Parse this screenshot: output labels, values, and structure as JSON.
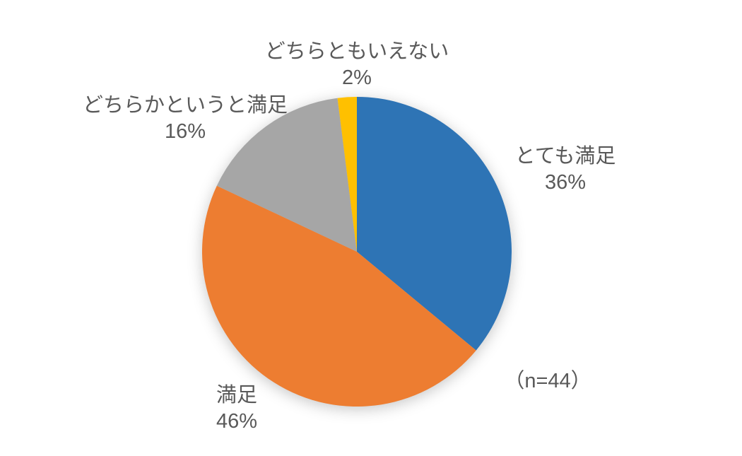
{
  "chart_data": {
    "type": "pie",
    "title": "",
    "categories": [
      "とても満足",
      "満足",
      "どちらかというと満足",
      "どちらともいえない"
    ],
    "values": [
      36,
      46,
      16,
      2
    ],
    "labels_pct": [
      "36%",
      "46%",
      "16%",
      "2%"
    ],
    "colors": [
      "#2E74B5",
      "#ED7D31",
      "#A6A6A6",
      "#FFC000"
    ],
    "unit": "%",
    "annotation": "（n=44）",
    "legend_position": "none",
    "data_labels": "outside, category name + percentage",
    "start_angle_deg": 0,
    "direction": "clockwise",
    "text_color": "#595959"
  }
}
